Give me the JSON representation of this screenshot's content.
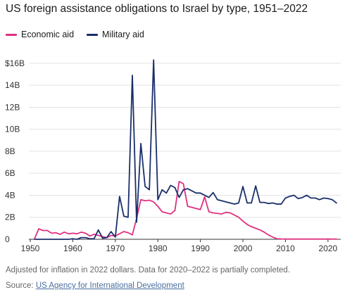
{
  "title": "US foreign assistance obligations to Israel by type, 1951–2022",
  "note": "Adjusted for inflation in 2022 dollars. Data for 2020–2022 is partially completed.",
  "source": {
    "prefix": "Source: ",
    "link_text": "US Agency for International Development"
  },
  "chart_data": {
    "type": "line",
    "title": "US foreign assistance obligations to Israel by type, 1951–2022",
    "xlabel": "",
    "ylabel": "",
    "xlim": [
      1950,
      2023
    ],
    "ylim": [
      0,
      16.5
    ],
    "x_ticks": [
      1950,
      1960,
      1970,
      1980,
      1990,
      2000,
      2010,
      2020
    ],
    "y_ticks": [
      0,
      2,
      4,
      6,
      8,
      10,
      12,
      14,
      16
    ],
    "y_tick_labels": [
      "0",
      "2B",
      "4B",
      "6B",
      "8B",
      "10B",
      "12B",
      "14B",
      "$16B"
    ],
    "legend_position": "top-left",
    "grid": "horizontal",
    "series": [
      {
        "name": "Economic aid",
        "color": "#e0307f",
        "points": [
          [
            1951,
            0.05
          ],
          [
            1952,
            0.95
          ],
          [
            1953,
            0.8
          ],
          [
            1954,
            0.8
          ],
          [
            1955,
            0.55
          ],
          [
            1956,
            0.6
          ],
          [
            1957,
            0.45
          ],
          [
            1958,
            0.65
          ],
          [
            1959,
            0.5
          ],
          [
            1960,
            0.55
          ],
          [
            1961,
            0.5
          ],
          [
            1962,
            0.65
          ],
          [
            1963,
            0.55
          ],
          [
            1964,
            0.3
          ],
          [
            1965,
            0.45
          ],
          [
            1966,
            0.35
          ],
          [
            1967,
            0.25
          ],
          [
            1968,
            0.15
          ],
          [
            1969,
            0.35
          ],
          [
            1970,
            0.3
          ],
          [
            1971,
            0.5
          ],
          [
            1972,
            0.7
          ],
          [
            1973,
            0.6
          ],
          [
            1974,
            0.4
          ],
          [
            1975,
            1.9
          ],
          [
            1976,
            3.6
          ],
          [
            1977,
            3.5
          ],
          [
            1978,
            3.55
          ],
          [
            1979,
            3.4
          ],
          [
            1980,
            3.0
          ],
          [
            1981,
            2.5
          ],
          [
            1982,
            2.4
          ],
          [
            1983,
            2.3
          ],
          [
            1984,
            2.6
          ],
          [
            1985,
            5.25
          ],
          [
            1986,
            5.05
          ],
          [
            1987,
            3.0
          ],
          [
            1988,
            2.9
          ],
          [
            1989,
            2.8
          ],
          [
            1990,
            2.7
          ],
          [
            1991,
            3.85
          ],
          [
            1992,
            2.5
          ],
          [
            1993,
            2.4
          ],
          [
            1994,
            2.35
          ],
          [
            1995,
            2.3
          ],
          [
            1996,
            2.45
          ],
          [
            1997,
            2.4
          ],
          [
            1998,
            2.2
          ],
          [
            1999,
            2.0
          ],
          [
            2000,
            1.65
          ],
          [
            2001,
            1.35
          ],
          [
            2002,
            1.15
          ],
          [
            2003,
            1.0
          ],
          [
            2004,
            0.85
          ],
          [
            2005,
            0.65
          ],
          [
            2006,
            0.4
          ],
          [
            2007,
            0.2
          ],
          [
            2008,
            0.05
          ],
          [
            2009,
            0.03
          ],
          [
            2010,
            0.02
          ],
          [
            2011,
            0.02
          ],
          [
            2012,
            0.02
          ],
          [
            2013,
            0.02
          ],
          [
            2014,
            0.02
          ],
          [
            2015,
            0.02
          ],
          [
            2016,
            0.02
          ],
          [
            2017,
            0.02
          ],
          [
            2018,
            0.02
          ],
          [
            2019,
            0.02
          ],
          [
            2020,
            0.02
          ],
          [
            2021,
            0.02
          ],
          [
            2022,
            0.02
          ]
        ]
      },
      {
        "name": "Military aid",
        "color": "#1a2f6b",
        "points": [
          [
            1951,
            0.0
          ],
          [
            1955,
            0.0
          ],
          [
            1959,
            0.0
          ],
          [
            1960,
            0.05
          ],
          [
            1961,
            0.0
          ],
          [
            1962,
            0.15
          ],
          [
            1963,
            0.15
          ],
          [
            1964,
            0.05
          ],
          [
            1965,
            0.05
          ],
          [
            1966,
            0.85
          ],
          [
            1967,
            0.1
          ],
          [
            1968,
            0.15
          ],
          [
            1969,
            0.7
          ],
          [
            1970,
            0.2
          ],
          [
            1971,
            3.9
          ],
          [
            1972,
            2.1
          ],
          [
            1973,
            2.0
          ],
          [
            1974,
            14.9
          ],
          [
            1975,
            1.55
          ],
          [
            1976,
            8.7
          ],
          [
            1977,
            4.8
          ],
          [
            1978,
            4.5
          ],
          [
            1979,
            16.3
          ],
          [
            1980,
            3.6
          ],
          [
            1981,
            4.5
          ],
          [
            1982,
            4.2
          ],
          [
            1983,
            4.9
          ],
          [
            1984,
            4.7
          ],
          [
            1985,
            3.8
          ],
          [
            1986,
            4.5
          ],
          [
            1987,
            4.6
          ],
          [
            1988,
            4.4
          ],
          [
            1989,
            4.2
          ],
          [
            1990,
            4.2
          ],
          [
            1991,
            4.0
          ],
          [
            1992,
            3.8
          ],
          [
            1993,
            4.25
          ],
          [
            1994,
            3.6
          ],
          [
            1995,
            3.5
          ],
          [
            1996,
            3.4
          ],
          [
            1997,
            3.3
          ],
          [
            1998,
            3.2
          ],
          [
            1999,
            3.3
          ],
          [
            2000,
            4.8
          ],
          [
            2001,
            3.3
          ],
          [
            2002,
            3.3
          ],
          [
            2003,
            4.85
          ],
          [
            2004,
            3.35
          ],
          [
            2005,
            3.35
          ],
          [
            2006,
            3.25
          ],
          [
            2007,
            3.3
          ],
          [
            2008,
            3.2
          ],
          [
            2009,
            3.2
          ],
          [
            2010,
            3.75
          ],
          [
            2011,
            3.9
          ],
          [
            2012,
            4.0
          ],
          [
            2013,
            3.7
          ],
          [
            2014,
            3.8
          ],
          [
            2015,
            4.0
          ],
          [
            2016,
            3.75
          ],
          [
            2017,
            3.75
          ],
          [
            2018,
            3.6
          ],
          [
            2019,
            3.75
          ],
          [
            2020,
            3.7
          ],
          [
            2021,
            3.6
          ],
          [
            2022,
            3.3
          ]
        ]
      }
    ]
  }
}
